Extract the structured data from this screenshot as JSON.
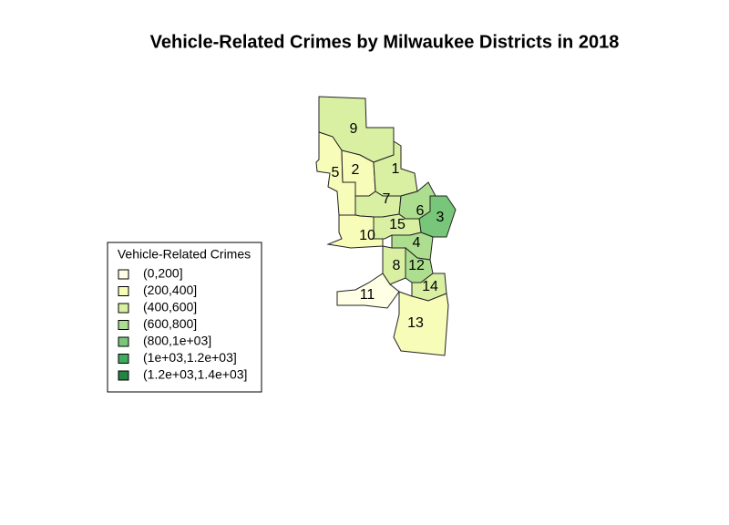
{
  "title": "Vehicle-Related Crimes by Milwaukee Districts in 2018",
  "legend": {
    "title": "Vehicle-Related Crimes",
    "entries": [
      {
        "label": "(0,200]",
        "color": "#ffffe5"
      },
      {
        "label": "(200,400]",
        "color": "#f7fcb9"
      },
      {
        "label": "(400,600]",
        "color": "#d9f0a3"
      },
      {
        "label": "(600,800]",
        "color": "#addd8e"
      },
      {
        "label": "(800,1e+03]",
        "color": "#78c679"
      },
      {
        "label": "(1e+03,1.2e+03]",
        "color": "#41ab5d"
      },
      {
        "label": "(1.2e+03,1.4e+03]",
        "color": "#238443"
      }
    ]
  },
  "districts": [
    {
      "label": "9",
      "color": "#d9f0a3"
    },
    {
      "label": "5",
      "color": "#f7fcb9"
    },
    {
      "label": "2",
      "color": "#f7fcb9"
    },
    {
      "label": "1",
      "color": "#d9f0a3"
    },
    {
      "label": "7",
      "color": "#d9f0a3"
    },
    {
      "label": "6",
      "color": "#addd8e"
    },
    {
      "label": "3",
      "color": "#78c679"
    },
    {
      "label": "15",
      "color": "#d9f0a3"
    },
    {
      "label": "10",
      "color": "#f7fcb9"
    },
    {
      "label": "4",
      "color": "#addd8e"
    },
    {
      "label": "8",
      "color": "#d9f0a3"
    },
    {
      "label": "12",
      "color": "#addd8e"
    },
    {
      "label": "14",
      "color": "#d9f0a3"
    },
    {
      "label": "11",
      "color": "#ffffe5"
    },
    {
      "label": "13",
      "color": "#f7fcb9"
    }
  ]
}
